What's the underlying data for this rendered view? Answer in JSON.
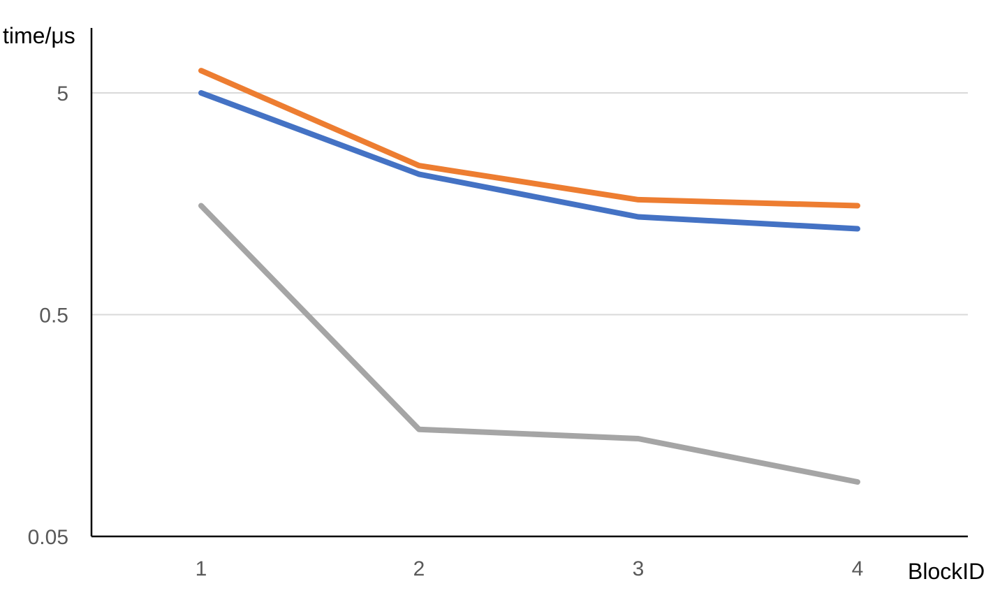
{
  "chart_data": {
    "type": "line",
    "title": "",
    "xlabel": "BlockID",
    "ylabel": "time/μs",
    "yscale": "log",
    "ylim": [
      0.05,
      5.6
    ],
    "yticks": [
      "5",
      "0.5",
      "0.05"
    ],
    "categories": [
      "1",
      "2",
      "3",
      "4"
    ],
    "grid": true,
    "legend": "none",
    "series": [
      {
        "color": "#ED7D31",
        "values": [
          6.3,
          2.35,
          1.65,
          1.55
        ]
      },
      {
        "color": "#4472C4",
        "values": [
          5.0,
          2.15,
          1.38,
          1.22
        ]
      },
      {
        "color": "#A5A5A5",
        "values": [
          1.55,
          0.152,
          0.138,
          0.088
        ]
      }
    ]
  }
}
